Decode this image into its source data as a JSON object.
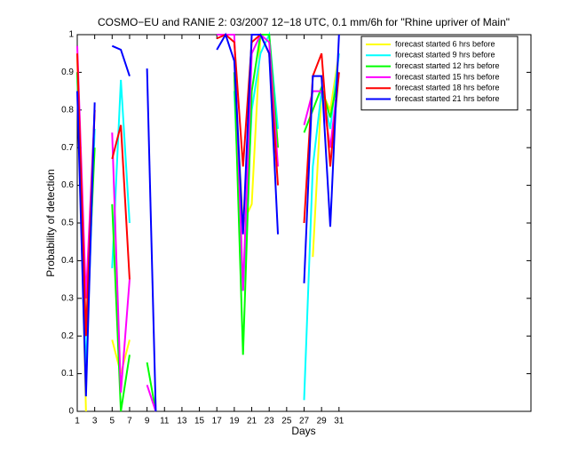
{
  "chart_data": {
    "type": "line",
    "title": "COSMO−EU and RANIE 2: 03/2007 12−18 UTC, 0.1 mm/6h for \"Rhine upriver of Main\"",
    "xlabel": "Days",
    "ylabel": "Probability of detection",
    "x": [
      1,
      2,
      3,
      4,
      5,
      6,
      7,
      8,
      9,
      10,
      11,
      12,
      13,
      14,
      15,
      16,
      17,
      18,
      19,
      20,
      21,
      22,
      23,
      24,
      25,
      26,
      27,
      28,
      29,
      30,
      31
    ],
    "xlim": [
      1,
      53
    ],
    "ylim": [
      0,
      1
    ],
    "xticks": [
      1,
      3,
      5,
      7,
      9,
      11,
      13,
      15,
      17,
      19,
      21,
      23,
      25,
      27,
      29,
      31
    ],
    "yticks": [
      0,
      0.1,
      0.2,
      0.3,
      0.4,
      0.5,
      0.6,
      0.7,
      0.8,
      0.9,
      1
    ],
    "legend": "upper right",
    "series": [
      {
        "name": "forecast started 6 hrs before",
        "color": "#ffff00",
        "values": [
          0.95,
          0,
          null,
          null,
          0.19,
          0.1,
          0.19,
          null,
          null,
          null,
          null,
          null,
          null,
          null,
          null,
          null,
          null,
          null,
          0.9,
          0.5,
          0.55,
          1,
          1,
          0.7,
          null,
          null,
          null,
          0.41,
          0.85,
          0.8,
          0.95
        ]
      },
      {
        "name": "forecast started 9 hrs before",
        "color": "#00ffff",
        "values": [
          0.9,
          0.1,
          0.75,
          null,
          0.38,
          0.88,
          0.5,
          null,
          null,
          null,
          null,
          null,
          null,
          null,
          null,
          null,
          null,
          null,
          0.85,
          0.32,
          0.8,
          0.95,
          1,
          0.75,
          null,
          null,
          0.03,
          0.65,
          0.85,
          0.75,
          0.95
        ]
      },
      {
        "name": "forecast started 12 hrs before",
        "color": "#00ff00",
        "values": [
          0.9,
          0.2,
          0.7,
          null,
          0.55,
          0,
          0.15,
          null,
          0.13,
          0,
          null,
          null,
          null,
          null,
          null,
          null,
          null,
          null,
          0.9,
          0.15,
          0.85,
          1,
          1,
          0.7,
          null,
          null,
          0.74,
          0.8,
          0.86,
          0.78,
          0.9
        ]
      },
      {
        "name": "forecast started 15 hrs before",
        "color": "#ff00ff",
        "values": [
          0.97,
          0.3,
          0.8,
          null,
          0.74,
          0.05,
          0.35,
          null,
          0.07,
          0,
          null,
          null,
          null,
          null,
          null,
          null,
          1,
          1,
          1,
          0.32,
          0.95,
          1,
          0.98,
          0.65,
          null,
          null,
          0.76,
          0.85,
          0.85,
          0.7,
          0.9
        ]
      },
      {
        "name": "forecast started 18 hrs before",
        "color": "#ff0000",
        "values": [
          0.95,
          0.2,
          0.8,
          null,
          0.67,
          0.76,
          0.35,
          null,
          null,
          null,
          null,
          null,
          null,
          null,
          null,
          null,
          0.99,
          1,
          0.98,
          0.65,
          0.98,
          1,
          0.95,
          0.6,
          null,
          null,
          0.5,
          0.89,
          0.95,
          0.65,
          0.9
        ]
      },
      {
        "name": "forecast started 21 hrs before",
        "color": "#0000ff",
        "values": [
          0.85,
          0.04,
          0.82,
          null,
          0.97,
          0.96,
          0.89,
          null,
          0.91,
          0,
          null,
          null,
          null,
          null,
          null,
          null,
          0.96,
          1,
          0.93,
          0.47,
          1,
          1,
          0.95,
          0.47,
          null,
          null,
          0.34,
          0.89,
          0.89,
          0.49,
          1
        ]
      }
    ]
  }
}
